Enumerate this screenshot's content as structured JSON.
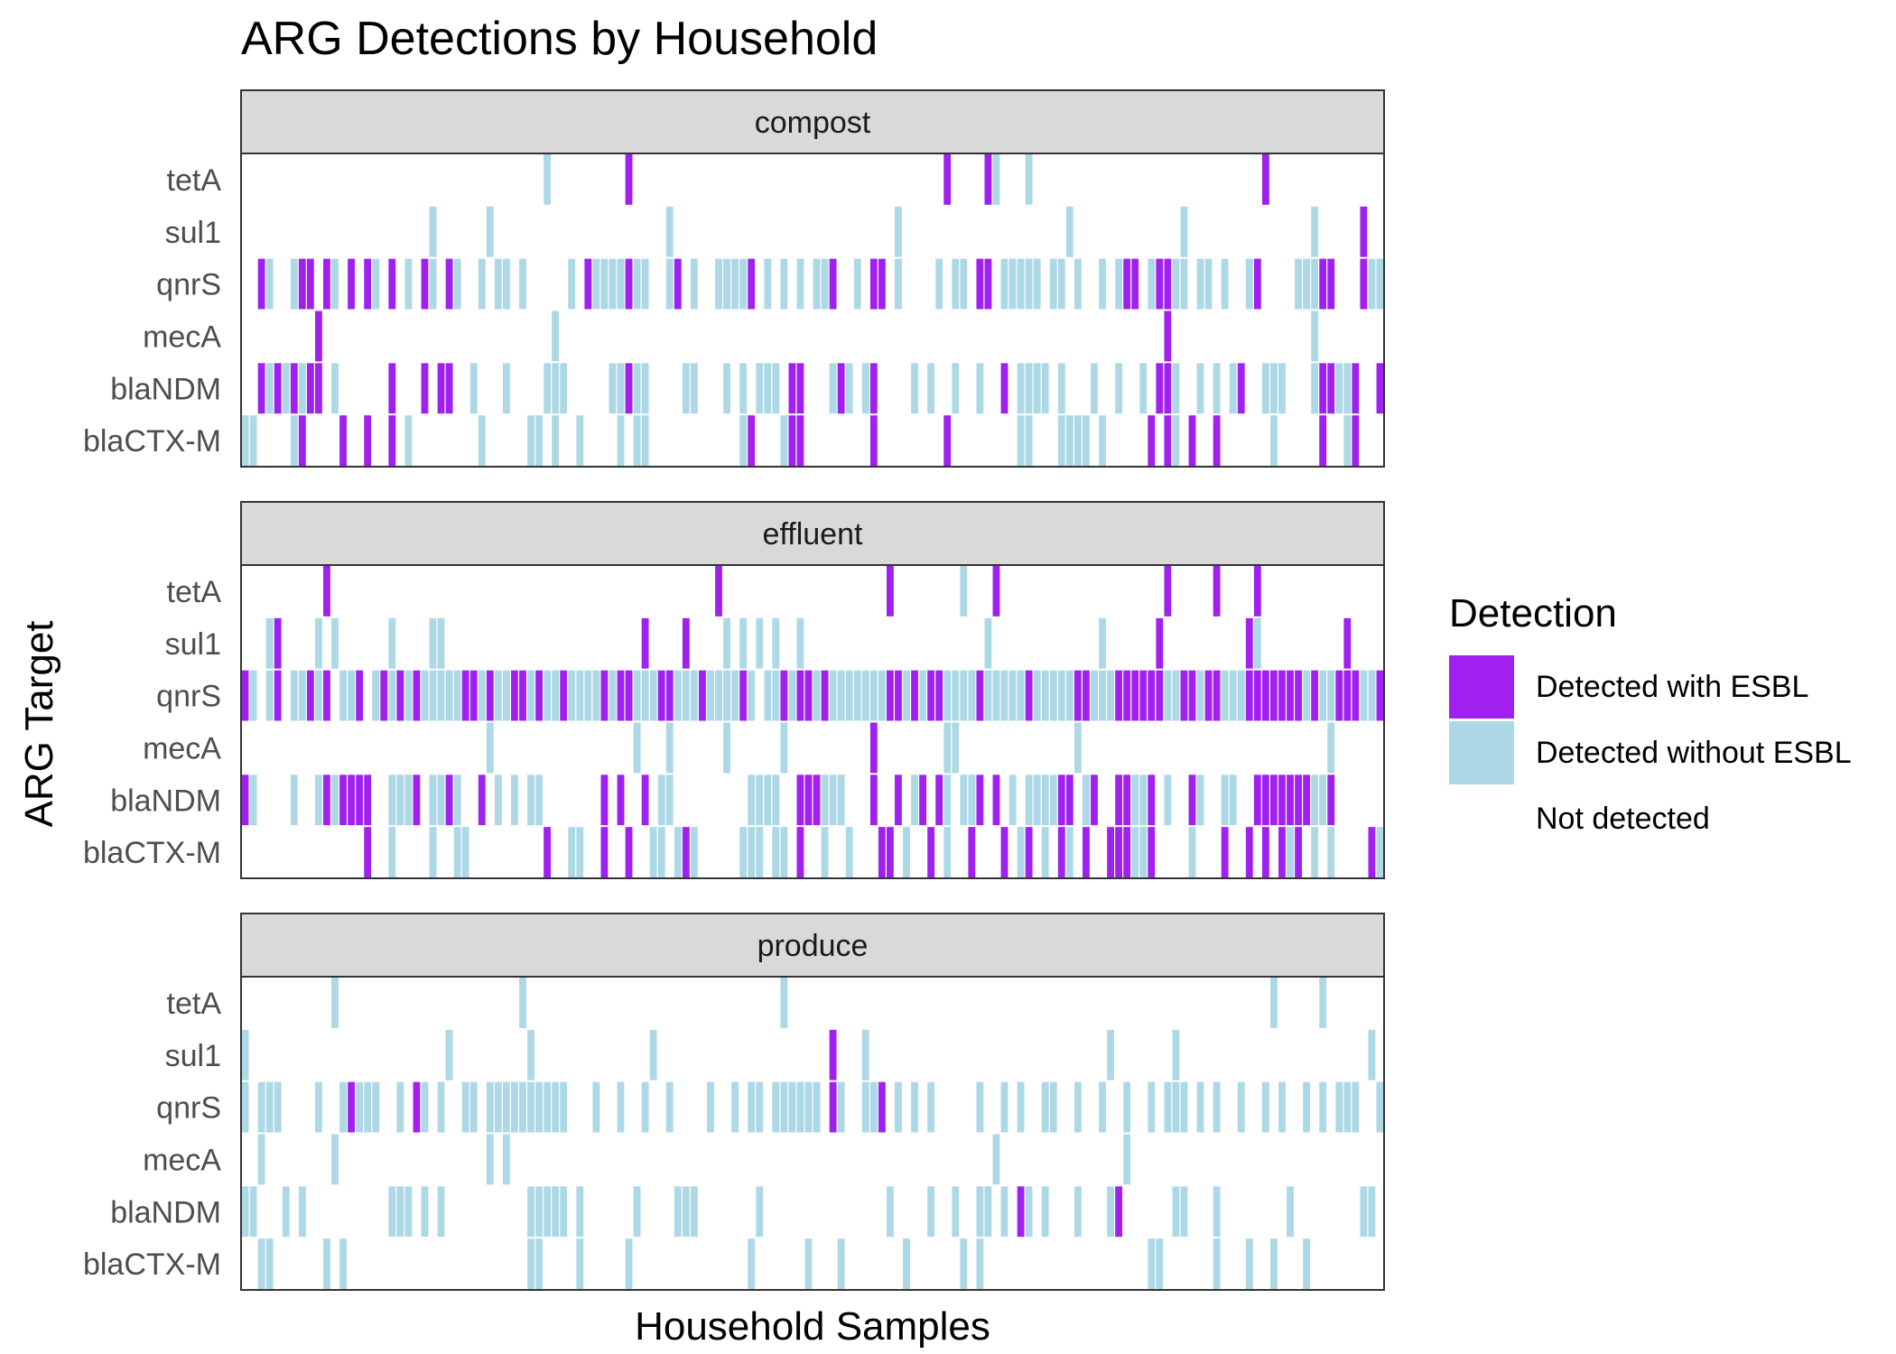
{
  "chart_data": {
    "type": "heatmap",
    "title": "ARG Detections by Household",
    "xlabel": "Household Samples",
    "ylabel": "ARG Target",
    "x_tick_labels_shown": false,
    "grid": false,
    "legend_position": "right",
    "legend": {
      "title": "Detection",
      "entries": [
        {
          "label": "Detected with ESBL",
          "color": "#a020f0"
        },
        {
          "label": "Detected without ESBL",
          "color": "#add8e6"
        },
        {
          "label": "Not detected",
          "color": "#ffffff"
        }
      ]
    },
    "n_samples": 140,
    "rows": [
      "tetA",
      "sul1",
      "qnrS",
      "mecA",
      "blaNDM",
      "blaCTX-M"
    ],
    "panels": [
      {
        "name": "compost",
        "cells": {
          "tetA": {
            "esbl": [
              47,
              86,
              91,
              125
            ],
            "no_esbl": [
              37,
              92,
              96
            ]
          },
          "sul1": {
            "esbl": [
              137
            ],
            "no_esbl": [
              23,
              30,
              52,
              80,
              101,
              115,
              131
            ]
          },
          "qnrS": {
            "esbl": [
              2,
              7,
              8,
              10,
              13,
              15,
              18,
              22,
              25,
              42,
              47,
              53,
              62,
              72,
              77,
              78,
              90,
              91,
              108,
              109,
              112,
              113,
              124,
              132,
              133,
              137
            ],
            "no_esbl": [
              3,
              6,
              11,
              16,
              20,
              23,
              26,
              29,
              31,
              32,
              34,
              40,
              43,
              44,
              45,
              46,
              48,
              49,
              52,
              55,
              58,
              59,
              60,
              61,
              64,
              66,
              68,
              70,
              71,
              75,
              80,
              85,
              87,
              88,
              93,
              94,
              95,
              96,
              97,
              99,
              100,
              102,
              105,
              107,
              111,
              114,
              115,
              117,
              118,
              120,
              123,
              129,
              130,
              131,
              138,
              139
            ]
          },
          "mecA": {
            "esbl": [
              9,
              113
            ],
            "no_esbl": [
              38,
              131
            ]
          },
          "blaNDM": {
            "esbl": [
              2,
              4,
              6,
              8,
              9,
              18,
              22,
              24,
              25,
              47,
              67,
              68,
              73,
              77,
              93,
              112,
              113,
              122,
              132,
              133,
              136,
              139
            ],
            "no_esbl": [
              3,
              5,
              7,
              11,
              28,
              32,
              37,
              38,
              39,
              45,
              46,
              48,
              49,
              54,
              55,
              59,
              61,
              63,
              64,
              65,
              72,
              74,
              76,
              82,
              84,
              87,
              90,
              95,
              96,
              97,
              98,
              100,
              104,
              107,
              110,
              114,
              117,
              119,
              121,
              125,
              126,
              127,
              131,
              134,
              135
            ]
          },
          "blaCTX-M": {
            "esbl": [
              7,
              12,
              15,
              18,
              62,
              67,
              68,
              77,
              86,
              111,
              113,
              116,
              119,
              132,
              136
            ],
            "no_esbl": [
              0,
              1,
              6,
              20,
              29,
              35,
              36,
              38,
              41,
              46,
              48,
              49,
              61,
              66,
              95,
              96,
              100,
              101,
              102,
              103,
              105,
              114,
              126,
              135
            ]
          }
        }
      },
      {
        "name": "effluent",
        "cells": {
          "tetA": {
            "esbl": [
              10,
              58,
              79,
              92,
              113,
              119,
              124
            ],
            "no_esbl": [
              88
            ]
          },
          "sul1": {
            "esbl": [
              4,
              49,
              54,
              112,
              123,
              135
            ],
            "no_esbl": [
              3,
              9,
              11,
              18,
              23,
              24,
              59,
              61,
              63,
              65,
              68,
              91,
              105,
              124
            ]
          },
          "qnrS": {
            "esbl": [
              0,
              4,
              8,
              10,
              14,
              17,
              19,
              21,
              27,
              28,
              30,
              33,
              34,
              36,
              39,
              44,
              46,
              47,
              51,
              52,
              56,
              61,
              66,
              68,
              69,
              71,
              79,
              80,
              82,
              84,
              85,
              90,
              96,
              102,
              103,
              107,
              108,
              109,
              110,
              111,
              112,
              115,
              116,
              118,
              119,
              123,
              124,
              125,
              126,
              127,
              128,
              129,
              131,
              134,
              135,
              136,
              139
            ],
            "no_esbl": [
              1,
              3,
              6,
              7,
              9,
              12,
              13,
              16,
              18,
              20,
              22,
              23,
              24,
              25,
              26,
              29,
              31,
              32,
              35,
              37,
              38,
              40,
              41,
              42,
              43,
              45,
              48,
              49,
              50,
              53,
              54,
              55,
              57,
              58,
              59,
              60,
              62,
              64,
              65,
              67,
              70,
              72,
              73,
              74,
              75,
              76,
              77,
              78,
              81,
              83,
              86,
              87,
              88,
              89,
              91,
              92,
              93,
              94,
              95,
              97,
              98,
              99,
              100,
              101,
              104,
              105,
              106,
              113,
              114,
              117,
              120,
              121,
              122,
              130,
              132,
              133,
              137,
              138
            ]
          },
          "mecA": {
            "esbl": [
              77
            ],
            "no_esbl": [
              30,
              48,
              52,
              59,
              66,
              86,
              87,
              102,
              133
            ]
          },
          "blaNDM": {
            "esbl": [
              0,
              10,
              12,
              13,
              14,
              15,
              21,
              25,
              29,
              44,
              46,
              49,
              68,
              69,
              70,
              77,
              80,
              83,
              85,
              90,
              92,
              100,
              101,
              104,
              107,
              108,
              111,
              116,
              124,
              125,
              126,
              127,
              128,
              129,
              130,
              133
            ],
            "no_esbl": [
              1,
              6,
              9,
              11,
              18,
              19,
              20,
              23,
              24,
              26,
              31,
              33,
              35,
              36,
              51,
              52,
              62,
              63,
              64,
              65,
              71,
              72,
              73,
              82,
              86,
              88,
              89,
              94,
              96,
              97,
              98,
              99,
              103,
              109,
              110,
              113,
              117,
              120,
              121,
              131,
              132
            ]
          },
          "blaCTX-M": {
            "esbl": [
              15,
              37,
              44,
              47,
              54,
              68,
              78,
              79,
              84,
              89,
              93,
              96,
              100,
              103,
              106,
              107,
              108,
              111,
              120,
              123,
              125,
              127,
              129,
              138
            ],
            "no_esbl": [
              18,
              23,
              26,
              27,
              40,
              41,
              50,
              51,
              53,
              55,
              61,
              62,
              63,
              65,
              66,
              71,
              74,
              81,
              86,
              95,
              98,
              101,
              109,
              110,
              116,
              128,
              131,
              133,
              139
            ]
          }
        }
      },
      {
        "name": "produce",
        "cells": {
          "tetA": {
            "esbl": [],
            "no_esbl": [
              11,
              34,
              66,
              126,
              132
            ]
          },
          "sul1": {
            "esbl": [
              72
            ],
            "no_esbl": [
              0,
              25,
              35,
              50,
              76,
              106,
              114,
              138
            ]
          },
          "qnrS": {
            "esbl": [
              13,
              21,
              72,
              78
            ],
            "no_esbl": [
              0,
              2,
              3,
              4,
              9,
              12,
              14,
              15,
              16,
              19,
              22,
              24,
              27,
              28,
              30,
              31,
              32,
              33,
              34,
              35,
              36,
              37,
              38,
              39,
              43,
              46,
              49,
              52,
              57,
              60,
              62,
              63,
              65,
              66,
              67,
              68,
              69,
              70,
              73,
              76,
              77,
              80,
              82,
              84,
              90,
              93,
              95,
              98,
              99,
              102,
              105,
              108,
              111,
              113,
              114,
              115,
              117,
              119,
              122,
              125,
              127,
              130,
              132,
              134,
              135,
              136,
              139
            ]
          },
          "mecA": {
            "esbl": [],
            "no_esbl": [
              2,
              11,
              30,
              32,
              92,
              108
            ]
          },
          "blaNDM": {
            "esbl": [
              95,
              107
            ],
            "no_esbl": [
              0,
              1,
              5,
              7,
              18,
              19,
              20,
              22,
              24,
              35,
              36,
              37,
              38,
              39,
              41,
              48,
              53,
              54,
              55,
              63,
              79,
              84,
              87,
              90,
              91,
              93,
              96,
              98,
              102,
              106,
              114,
              115,
              119,
              128,
              137,
              138
            ]
          },
          "blaCTX-M": {
            "esbl": [],
            "no_esbl": [
              2,
              3,
              10,
              12,
              35,
              36,
              41,
              47,
              62,
              69,
              73,
              81,
              88,
              90,
              111,
              112,
              119,
              123,
              126,
              130
            ]
          }
        }
      }
    ]
  }
}
